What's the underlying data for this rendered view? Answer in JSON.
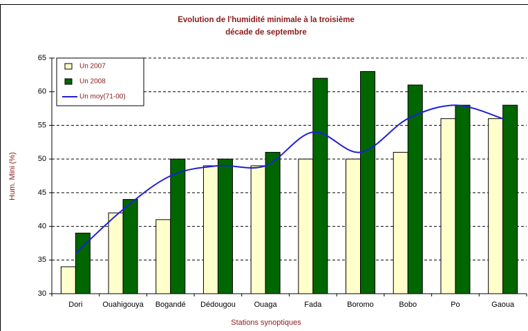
{
  "chart_data": {
    "type": "bar",
    "title": "Evolution de l'humidité minimale à la troisième décade de septembre",
    "y_label": "Hum. Mini (%)",
    "x_label": "Stations synoptiques",
    "categories": [
      "Dori",
      "Ouahigouya",
      "Bogandé",
      "Dédougou",
      "Ouaga",
      "Fada",
      "Boromo",
      "Bobo",
      "Po",
      "Gaoua"
    ],
    "series": [
      {
        "name": "Un 2007",
        "type": "bar",
        "color": "#ffffcc",
        "values": [
          34,
          42,
          41,
          49,
          49,
          50,
          50,
          51,
          56,
          56
        ]
      },
      {
        "name": "Un 2008",
        "type": "bar",
        "color": "#006600",
        "values": [
          39,
          44,
          50,
          50,
          51,
          62,
          63,
          61,
          58,
          58
        ]
      },
      {
        "name": "Un moy(71-00)",
        "type": "line",
        "color": "#1f1fd6",
        "values": [
          36,
          42.5,
          47.5,
          49,
          49,
          54,
          51,
          56,
          58,
          56
        ]
      }
    ],
    "ylim": [
      30,
      65
    ],
    "yticks": [
      30,
      35,
      40,
      45,
      50,
      55,
      60,
      65
    ],
    "grid": true,
    "legend": "top-left"
  }
}
